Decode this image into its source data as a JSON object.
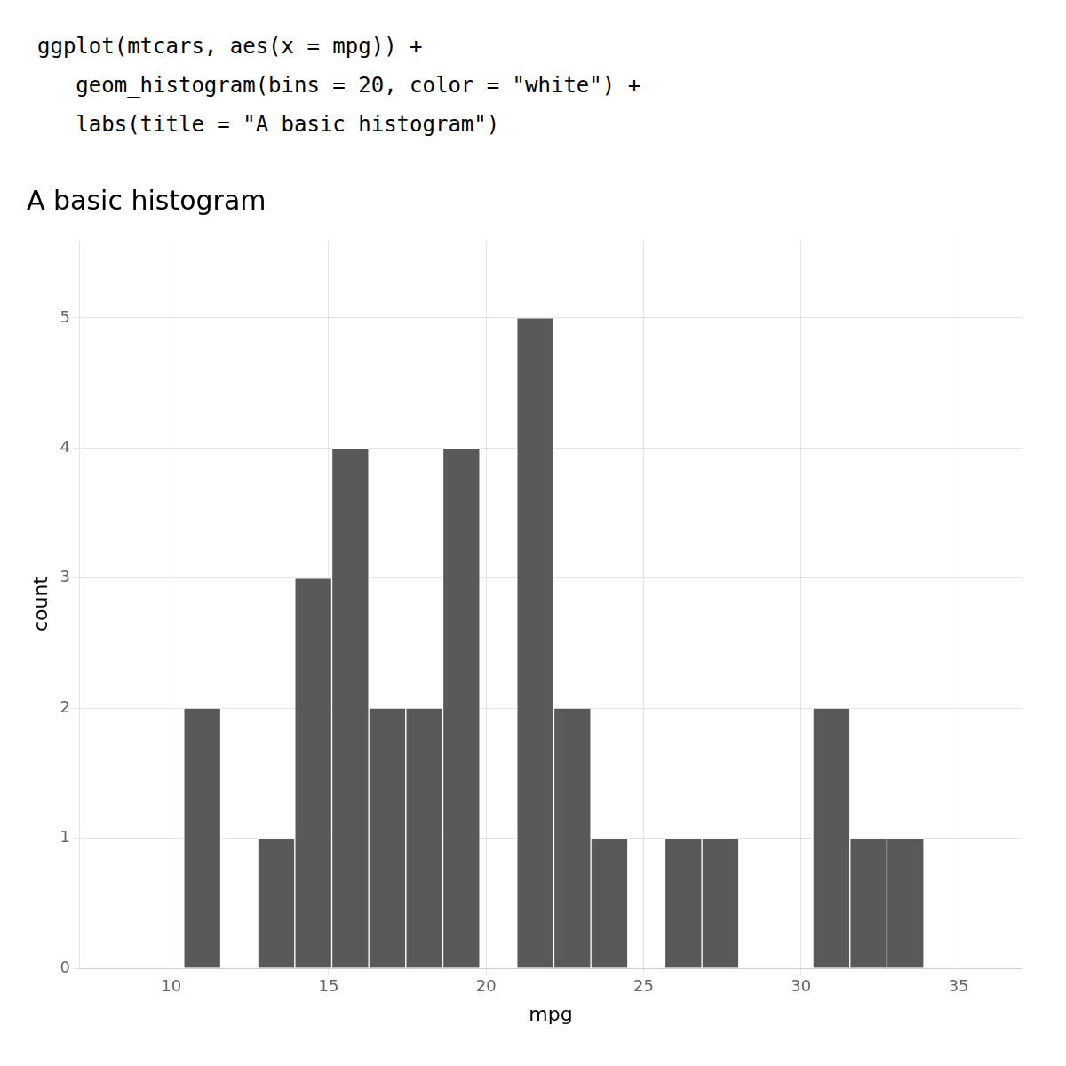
{
  "chart_data": {
    "type": "histogram",
    "title": "A basic histogram",
    "annotations": [
      "ggplot(mtcars, aes(x = mpg)) +",
      "   geom_histogram(bins = 20, color = \"white\") +",
      "   labs(title = \"A basic histogram\")"
    ],
    "xlabel": "mpg",
    "ylabel": "count",
    "bins": [
      10.4,
      11.575,
      12.75,
      13.925,
      15.1,
      16.275,
      17.45,
      18.625,
      19.8,
      20.975,
      22.15,
      23.325,
      24.5,
      25.675,
      26.85,
      28.025,
      29.2,
      30.375,
      31.55,
      32.725,
      33.9
    ],
    "values": [
      2,
      0,
      1,
      3,
      4,
      2,
      2,
      4,
      0,
      5,
      2,
      1,
      0,
      1,
      1,
      0,
      0,
      2,
      1,
      1
    ],
    "color": "#595959",
    "xlim": [
      7.1,
      37.0
    ],
    "xticks": [
      10,
      15,
      20,
      25,
      30,
      35
    ],
    "ylim": [
      0,
      5.6
    ],
    "yticks": [
      0,
      1,
      2,
      3,
      4,
      5
    ],
    "grid": true
  }
}
